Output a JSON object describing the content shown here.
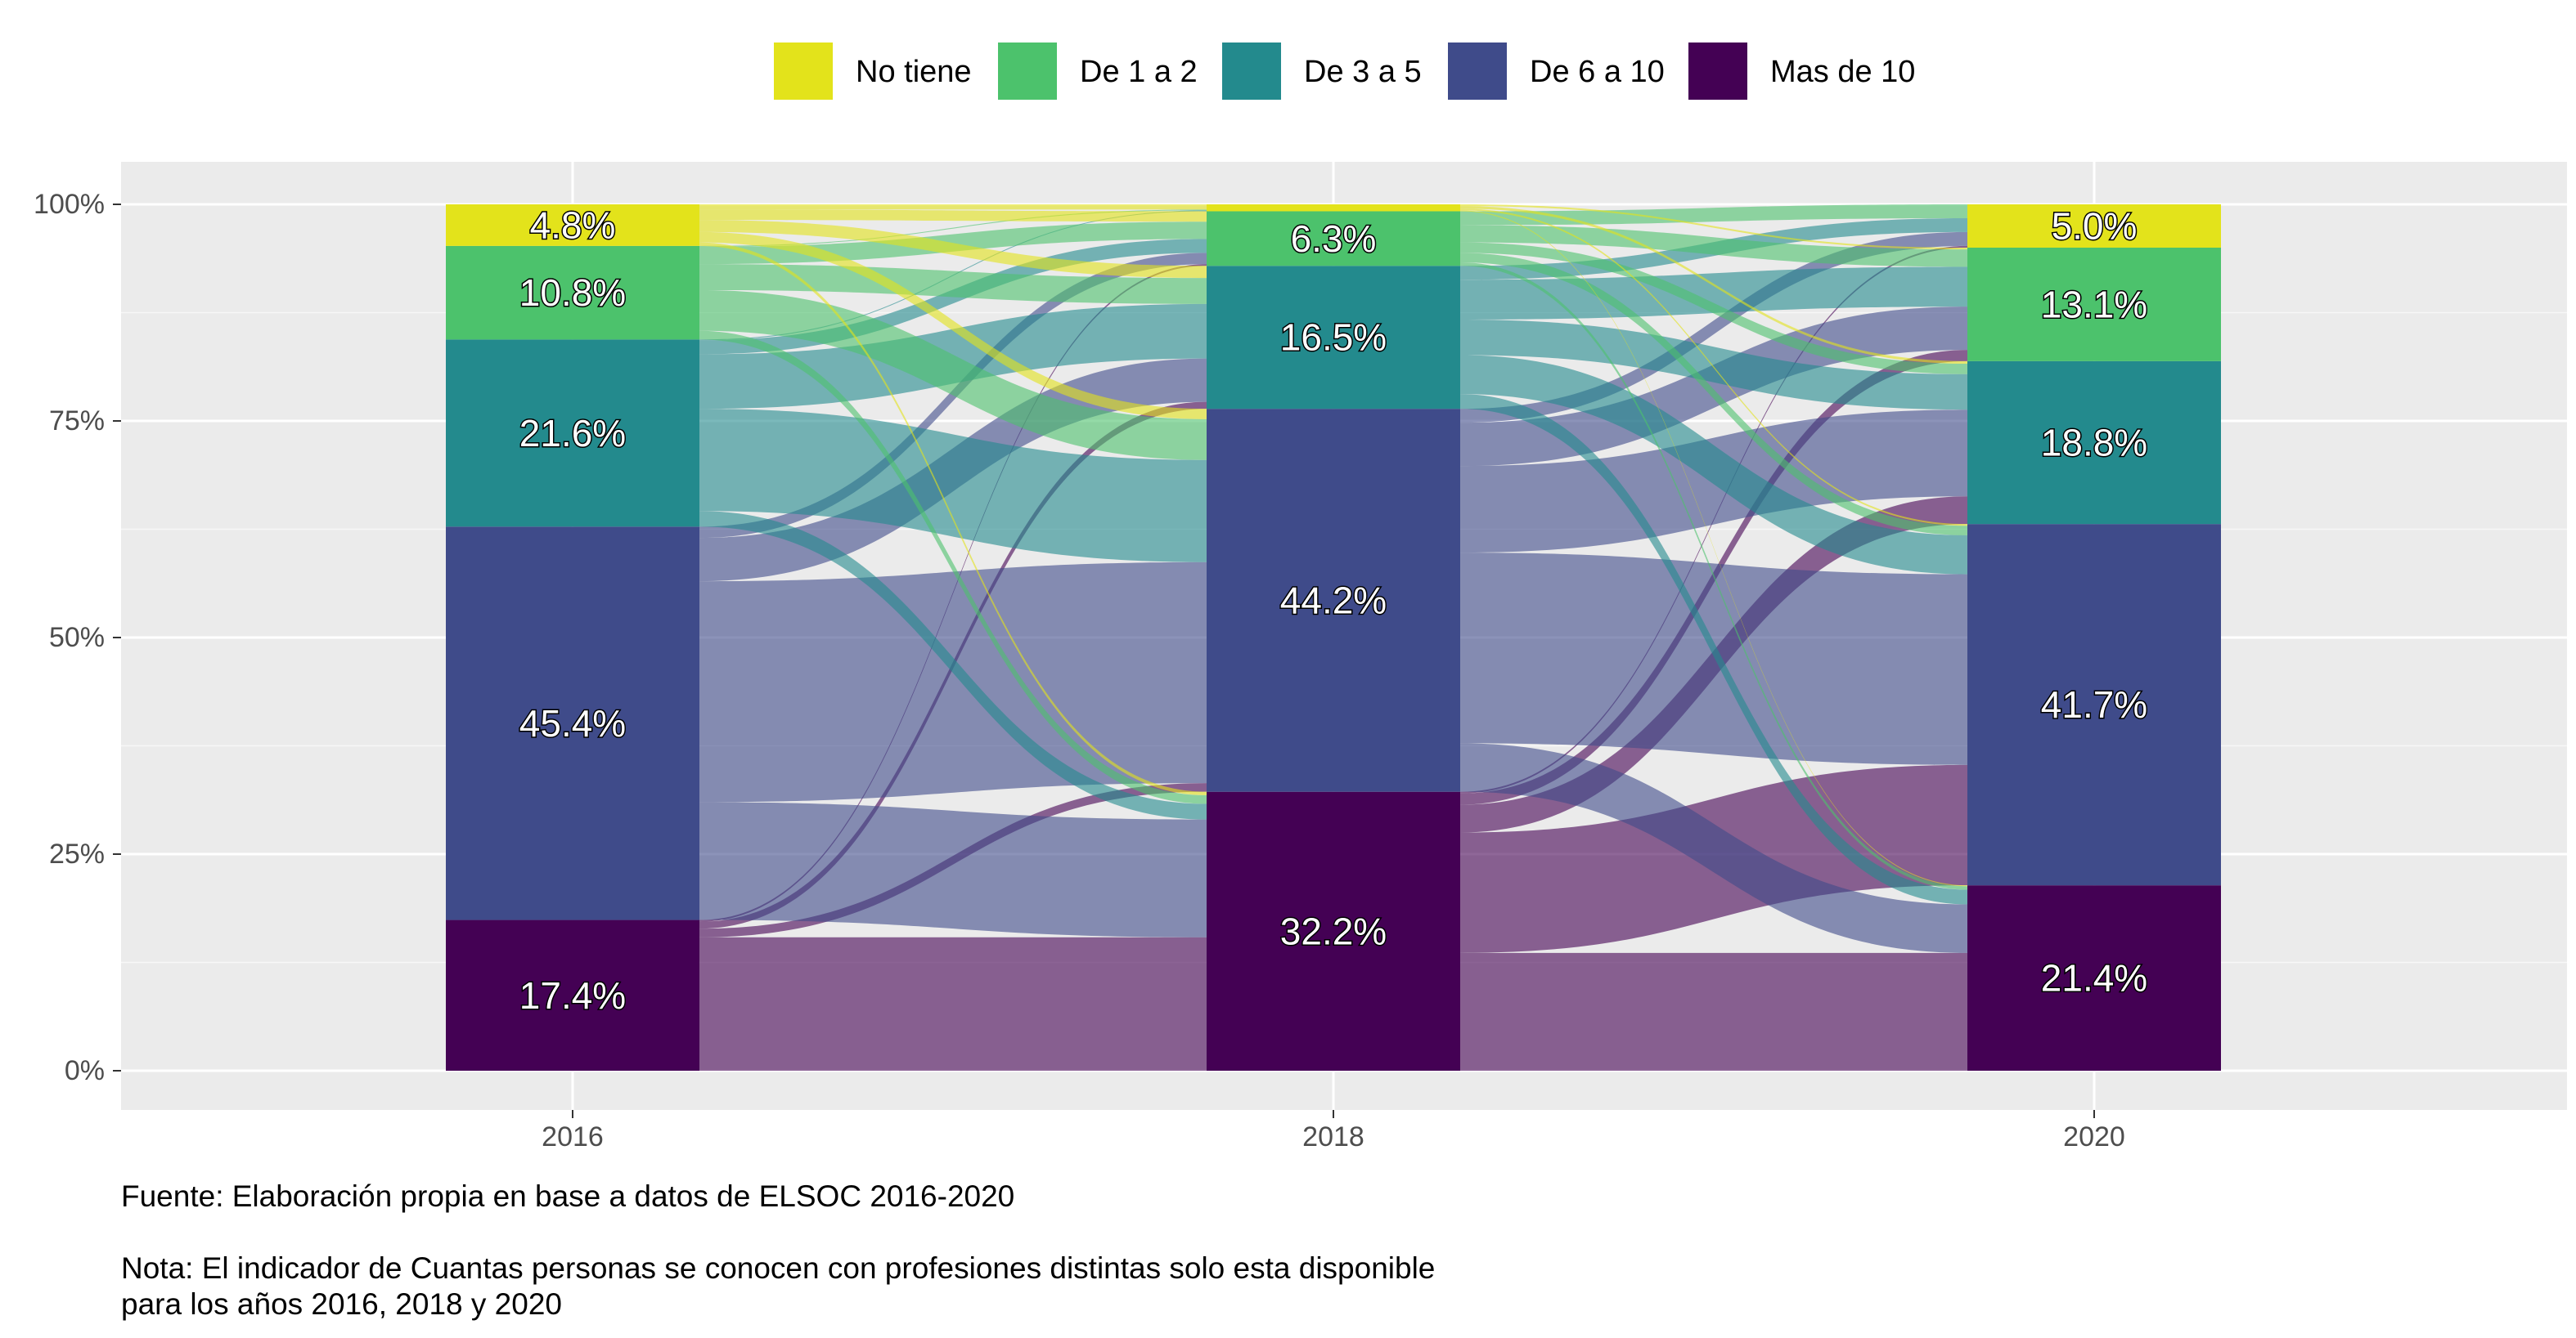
{
  "chart_data": {
    "type": "alluvial",
    "years": [
      "2016",
      "2018",
      "2020"
    ],
    "yaxis_ticks": [
      "0%",
      "25%",
      "50%",
      "75%",
      "100%"
    ],
    "ylim": [
      0,
      100
    ],
    "legend_position": "top",
    "categories": [
      {
        "name": "No tiene",
        "color": "#E3E31B"
      },
      {
        "name": "De 1 a 2",
        "color": "#4CC26C"
      },
      {
        "name": "De 3 a 5",
        "color": "#238A8D"
      },
      {
        "name": "De 6 a 10",
        "color": "#3F4B8A"
      },
      {
        "name": "Mas de 10",
        "color": "#440154"
      }
    ],
    "values": {
      "2016": [
        4.8,
        10.8,
        21.6,
        45.4,
        17.4
      ],
      "2018": [
        0.8,
        6.3,
        16.5,
        44.2,
        32.2
      ],
      "2020": [
        5.0,
        13.1,
        18.8,
        41.7,
        21.4
      ]
    },
    "bar_labels": {
      "2016": [
        "4.8%",
        "10.8%",
        "21.6%",
        "45.4%",
        "17.4%"
      ],
      "2018": [
        "",
        "6.3%",
        "16.5%",
        "44.2%",
        "32.2%"
      ],
      "2020": [
        "5.0%",
        "13.1%",
        "18.8%",
        "41.7%",
        "21.4%"
      ]
    },
    "flows_2016_2018": [
      [
        0.6,
        1.2,
        1.4,
        1.2,
        0.4
      ],
      [
        0.1,
        2.0,
        3.0,
        4.7,
        1.0
      ],
      [
        0.1,
        1.6,
        6.3,
        11.8,
        1.8
      ],
      [
        0.0,
        1.3,
        5.0,
        25.5,
        13.6
      ],
      [
        0.0,
        0.2,
        0.8,
        1.0,
        15.4
      ]
    ],
    "flows_2018_2020": [
      [
        0.0,
        0.2,
        0.3,
        0.2,
        0.1
      ],
      [
        1.6,
        2.0,
        1.2,
        1.1,
        0.4
      ],
      [
        1.6,
        4.6,
        4.1,
        4.5,
        1.7
      ],
      [
        1.6,
        5.0,
        10.0,
        22.0,
        5.6
      ],
      [
        0.2,
        1.3,
        3.2,
        13.9,
        13.6
      ]
    ]
  },
  "caption": {
    "source": "Fuente: Elaboración propia en base a datos de ELSOC 2016-2020",
    "note_line1": "Nota: El indicador de Cuantas personas se conocen con profesiones distintas solo esta disponible",
    "note_line2": "para los años 2016, 2018 y 2020"
  }
}
